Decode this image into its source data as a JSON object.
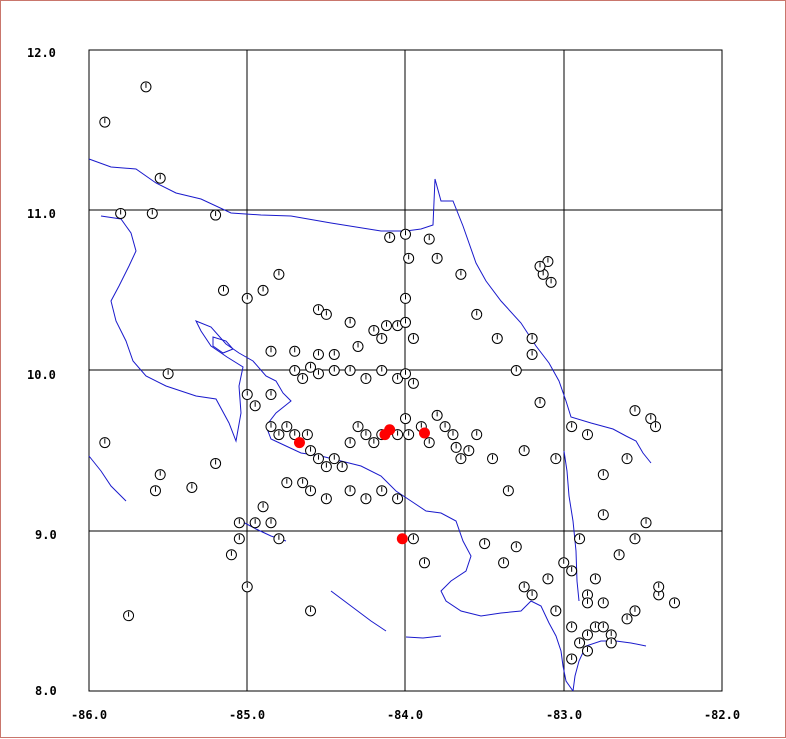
{
  "colors": {
    "background": "#ffffff",
    "border": "#c9766c",
    "grid": "#000000",
    "coastline": "#1a1acc",
    "marker_open": "#000000",
    "marker_filled": "#ff0000"
  },
  "chart_data": {
    "type": "scatter",
    "title": "",
    "xlabel": "",
    "ylabel": "",
    "xlim": [
      -86.0,
      -82.0
    ],
    "ylim": [
      8.0,
      12.0
    ],
    "x_ticks": [
      -86.0,
      -85.0,
      -84.0,
      -83.0,
      -82.0
    ],
    "y_ticks": [
      8.0,
      9.0,
      10.0,
      11.0,
      12.0
    ],
    "x_tick_labels": [
      "-86.0",
      "-85.0",
      "-84.0",
      "-83.0",
      "-82.0"
    ],
    "y_tick_labels": [
      "8.0",
      "9.0",
      "10.0",
      "11.0",
      "12.0"
    ],
    "grid": true,
    "series": [
      {
        "marker": "open-circle-with-tick",
        "color": "#000000",
        "points": [
          [
            -85.9,
            11.55
          ],
          [
            -85.64,
            11.77
          ],
          [
            -85.55,
            11.2
          ],
          [
            -85.8,
            10.98
          ],
          [
            -85.6,
            10.98
          ],
          [
            -85.2,
            10.97
          ],
          [
            -85.15,
            10.5
          ],
          [
            -85.0,
            10.45
          ],
          [
            -84.9,
            10.5
          ],
          [
            -84.8,
            10.6
          ],
          [
            -84.55,
            10.38
          ],
          [
            -84.5,
            10.35
          ],
          [
            -84.35,
            10.3
          ],
          [
            -84.85,
            10.12
          ],
          [
            -84.7,
            10.12
          ],
          [
            -84.55,
            10.1
          ],
          [
            -84.45,
            10.1
          ],
          [
            -84.3,
            10.15
          ],
          [
            -84.2,
            10.25
          ],
          [
            -84.15,
            10.2
          ],
          [
            -84.05,
            10.28
          ],
          [
            -84.0,
            10.45
          ],
          [
            -84.0,
            10.3
          ],
          [
            -83.95,
            10.2
          ],
          [
            -84.12,
            10.28
          ],
          [
            -84.0,
            10.85
          ],
          [
            -84.1,
            10.83
          ],
          [
            -83.98,
            10.7
          ],
          [
            -83.85,
            10.82
          ],
          [
            -83.8,
            10.7
          ],
          [
            -83.65,
            10.6
          ],
          [
            -83.55,
            10.35
          ],
          [
            -83.42,
            10.2
          ],
          [
            -83.3,
            10.0
          ],
          [
            -83.2,
            10.2
          ],
          [
            -83.2,
            10.1
          ],
          [
            -83.13,
            10.6
          ],
          [
            -83.1,
            10.68
          ],
          [
            -83.08,
            10.55
          ],
          [
            -83.15,
            10.65
          ],
          [
            -84.6,
            10.02
          ],
          [
            -84.7,
            10.0
          ],
          [
            -84.65,
            9.95
          ],
          [
            -84.55,
            9.98
          ],
          [
            -84.45,
            10.0
          ],
          [
            -84.35,
            10.0
          ],
          [
            -84.25,
            9.95
          ],
          [
            -84.15,
            10.0
          ],
          [
            -84.05,
            9.95
          ],
          [
            -84.0,
            9.98
          ],
          [
            -83.95,
            9.92
          ],
          [
            -85.5,
            9.98
          ],
          [
            -85.9,
            9.55
          ],
          [
            -85.55,
            9.35
          ],
          [
            -85.58,
            9.25
          ],
          [
            -85.35,
            9.27
          ],
          [
            -85.2,
            9.42
          ],
          [
            -85.0,
            9.85
          ],
          [
            -84.95,
            9.78
          ],
          [
            -84.85,
            9.85
          ],
          [
            -84.75,
            9.65
          ],
          [
            -84.85,
            9.65
          ],
          [
            -84.8,
            9.6
          ],
          [
            -84.7,
            9.6
          ],
          [
            -84.62,
            9.6
          ],
          [
            -84.6,
            9.5
          ],
          [
            -84.55,
            9.45
          ],
          [
            -84.5,
            9.4
          ],
          [
            -84.45,
            9.45
          ],
          [
            -84.4,
            9.4
          ],
          [
            -84.35,
            9.55
          ],
          [
            -84.3,
            9.65
          ],
          [
            -84.25,
            9.6
          ],
          [
            -84.2,
            9.55
          ],
          [
            -84.15,
            9.6
          ],
          [
            -84.05,
            9.6
          ],
          [
            -84.0,
            9.7
          ],
          [
            -83.98,
            9.6
          ],
          [
            -83.9,
            9.65
          ],
          [
            -83.85,
            9.55
          ],
          [
            -83.8,
            9.72
          ],
          [
            -83.75,
            9.65
          ],
          [
            -83.7,
            9.6
          ],
          [
            -83.68,
            9.52
          ],
          [
            -83.65,
            9.45
          ],
          [
            -83.6,
            9.5
          ],
          [
            -83.55,
            9.6
          ],
          [
            -83.45,
            9.45
          ],
          [
            -83.35,
            9.25
          ],
          [
            -83.25,
            9.5
          ],
          [
            -83.15,
            9.8
          ],
          [
            -83.05,
            9.45
          ],
          [
            -82.95,
            9.65
          ],
          [
            -82.85,
            9.6
          ],
          [
            -82.75,
            9.35
          ],
          [
            -82.6,
            9.45
          ],
          [
            -82.55,
            9.75
          ],
          [
            -82.45,
            9.7
          ],
          [
            -82.42,
            9.65
          ],
          [
            -82.48,
            9.05
          ],
          [
            -82.55,
            8.95
          ],
          [
            -82.65,
            8.85
          ],
          [
            -82.75,
            9.1
          ],
          [
            -82.8,
            8.7
          ],
          [
            -82.85,
            8.6
          ],
          [
            -82.9,
            8.95
          ],
          [
            -82.95,
            8.75
          ],
          [
            -83.0,
            8.8
          ],
          [
            -83.05,
            8.5
          ],
          [
            -83.1,
            8.7
          ],
          [
            -83.2,
            8.6
          ],
          [
            -83.25,
            8.65
          ],
          [
            -83.3,
            8.9
          ],
          [
            -83.38,
            8.8
          ],
          [
            -83.5,
            8.92
          ],
          [
            -83.88,
            8.8
          ],
          [
            -83.95,
            8.95
          ],
          [
            -84.05,
            9.2
          ],
          [
            -84.15,
            9.25
          ],
          [
            -84.25,
            9.2
          ],
          [
            -84.35,
            9.25
          ],
          [
            -84.5,
            9.2
          ],
          [
            -84.6,
            9.25
          ],
          [
            -84.65,
            9.3
          ],
          [
            -84.75,
            9.3
          ],
          [
            -84.9,
            9.15
          ],
          [
            -84.95,
            9.05
          ],
          [
            -85.05,
            8.95
          ],
          [
            -85.1,
            8.85
          ],
          [
            -85.05,
            9.05
          ],
          [
            -84.85,
            9.05
          ],
          [
            -84.8,
            8.95
          ],
          [
            -85.0,
            8.65
          ],
          [
            -84.6,
            8.5
          ],
          [
            -85.75,
            8.47
          ],
          [
            -82.95,
            8.4
          ],
          [
            -82.9,
            8.3
          ],
          [
            -82.85,
            8.35
          ],
          [
            -82.8,
            8.4
          ],
          [
            -82.75,
            8.4
          ],
          [
            -82.7,
            8.35
          ],
          [
            -82.6,
            8.45
          ],
          [
            -82.55,
            8.5
          ],
          [
            -82.4,
            8.6
          ],
          [
            -82.3,
            8.55
          ],
          [
            -82.4,
            8.65
          ],
          [
            -82.75,
            8.55
          ],
          [
            -82.85,
            8.55
          ],
          [
            -82.95,
            8.2
          ],
          [
            -82.85,
            8.25
          ],
          [
            -82.7,
            8.3
          ]
        ]
      },
      {
        "marker": "filled-circle",
        "color": "#ff0000",
        "points": [
          [
            -84.67,
            9.55
          ],
          [
            -84.1,
            9.63
          ],
          [
            -84.13,
            9.6
          ],
          [
            -83.88,
            9.61
          ],
          [
            -84.02,
            8.95
          ]
        ]
      }
    ]
  }
}
